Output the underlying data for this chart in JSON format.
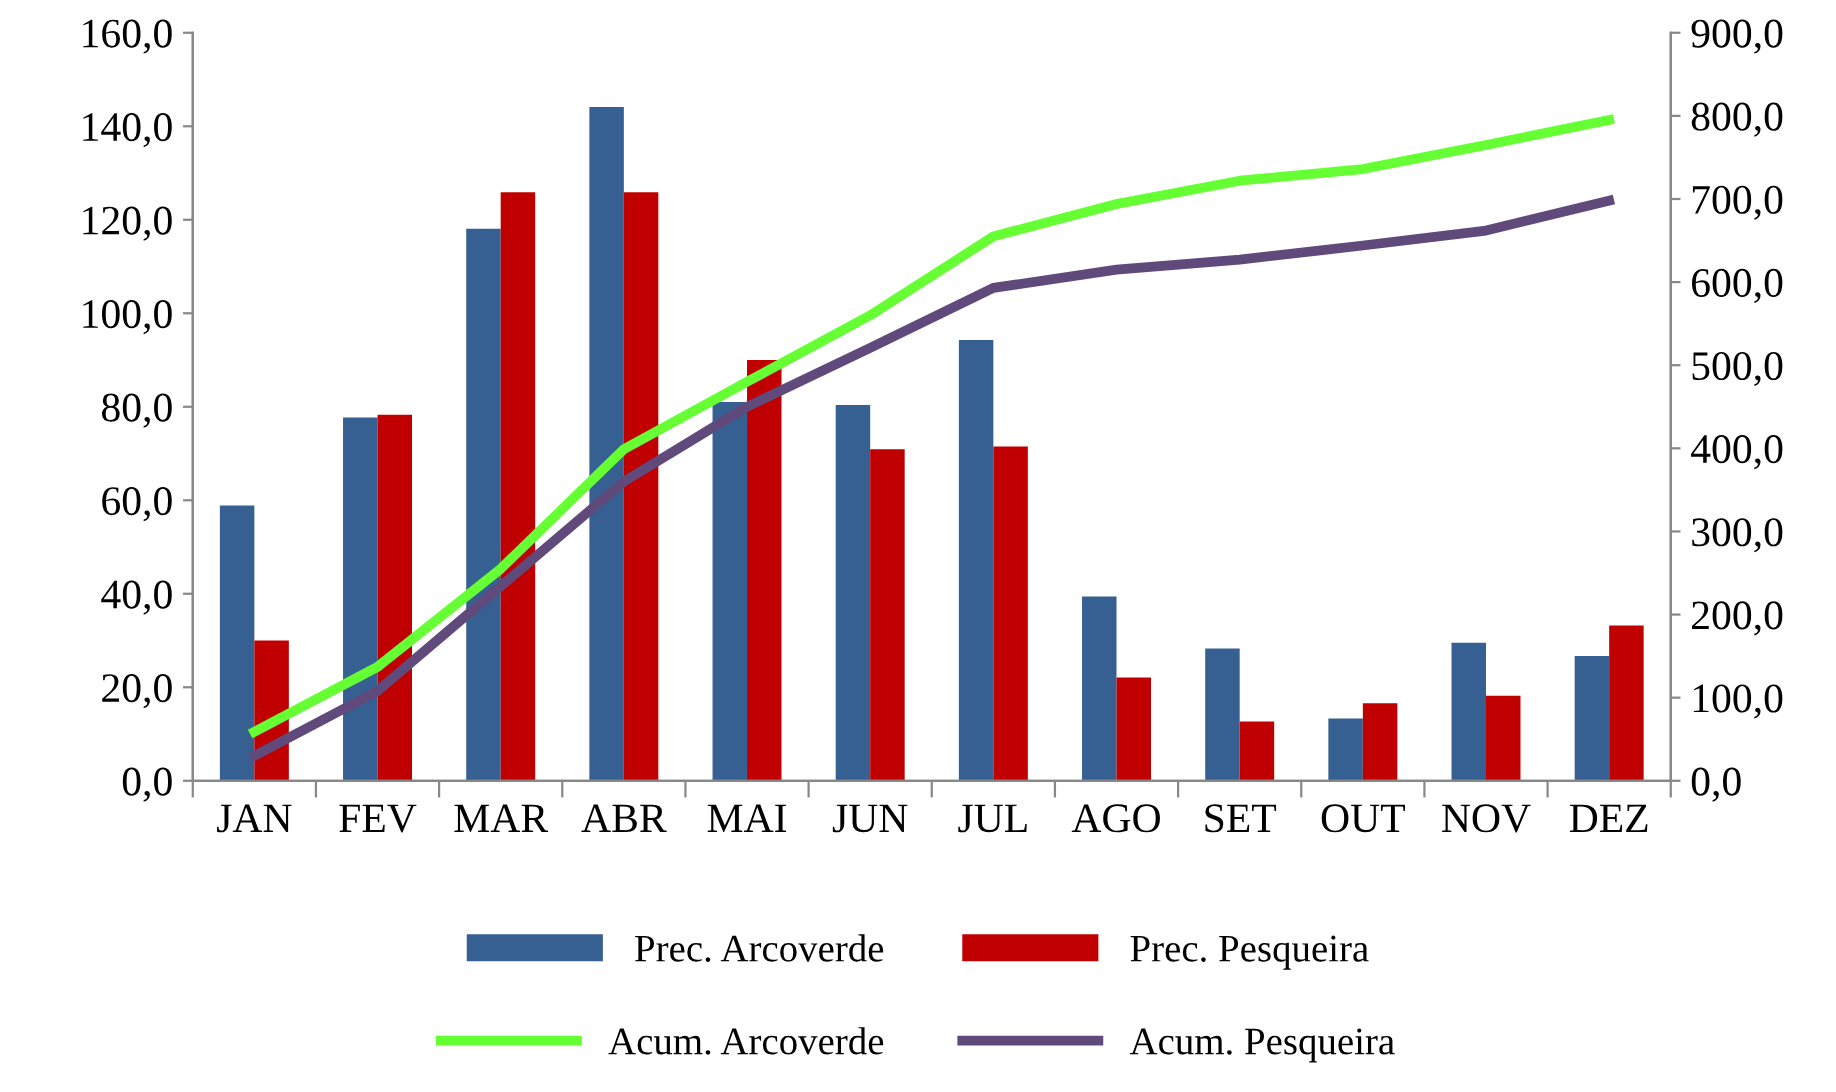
{
  "chart_data": {
    "type": "bar",
    "categories": [
      "JAN",
      "FEV",
      "MAR",
      "ABR",
      "MAI",
      "JUN",
      "JUL",
      "AGO",
      "SET",
      "OUT",
      "NOV",
      "DEZ"
    ],
    "series": [
      {
        "name": "Prec. Arcoverde",
        "color": "#366092",
        "values": [
          58.9,
          77.7,
          118.1,
          144.1,
          81.0,
          80.4,
          94.3,
          39.4,
          28.3,
          13.3,
          29.5,
          26.7
        ]
      },
      {
        "name": "Prec. Pesqueira",
        "color": "#c00000",
        "values": [
          30.0,
          78.3,
          125.9,
          125.9,
          90.0,
          70.9,
          71.5,
          22.1,
          12.7,
          16.6,
          18.2,
          33.2
        ]
      },
      {
        "name": "Acum. Arcoverde",
        "type": "line",
        "axis": "y2",
        "color": "#66ff33",
        "values": [
          59,
          137,
          255,
          399,
          480,
          560,
          655,
          694,
          722,
          736,
          765,
          795
        ]
      },
      {
        "name": "Acum. Pesqueira",
        "type": "line",
        "axis": "y2",
        "color": "#604a7b",
        "values": [
          30,
          108,
          234,
          360,
          450,
          521,
          593,
          615,
          627,
          644,
          662,
          698
        ]
      }
    ],
    "ylim": [
      0,
      160
    ],
    "yticks": [
      {
        "value": 0,
        "label": "0,0"
      },
      {
        "value": 20,
        "label": "20,0"
      },
      {
        "value": 40,
        "label": "40,0"
      },
      {
        "value": 60,
        "label": "60,0"
      },
      {
        "value": 80,
        "label": "80,0"
      },
      {
        "value": 100,
        "label": "100,0"
      },
      {
        "value": 120,
        "label": "120,0"
      },
      {
        "value": 140,
        "label": "140,0"
      },
      {
        "value": 160,
        "label": "160,0"
      }
    ],
    "y2lim": [
      0,
      900
    ],
    "y2ticks": [
      {
        "value": 0,
        "label": "0,0"
      },
      {
        "value": 100,
        "label": "100,0"
      },
      {
        "value": 200,
        "label": "200,0"
      },
      {
        "value": 300,
        "label": "300,0"
      },
      {
        "value": 400,
        "label": "400,0"
      },
      {
        "value": 500,
        "label": "500,0"
      },
      {
        "value": 600,
        "label": "600,0"
      },
      {
        "value": 700,
        "label": "700,0"
      },
      {
        "value": 800,
        "label": "800,0"
      },
      {
        "value": 900,
        "label": "900,0"
      }
    ],
    "legend": "bottom",
    "grid": false
  }
}
